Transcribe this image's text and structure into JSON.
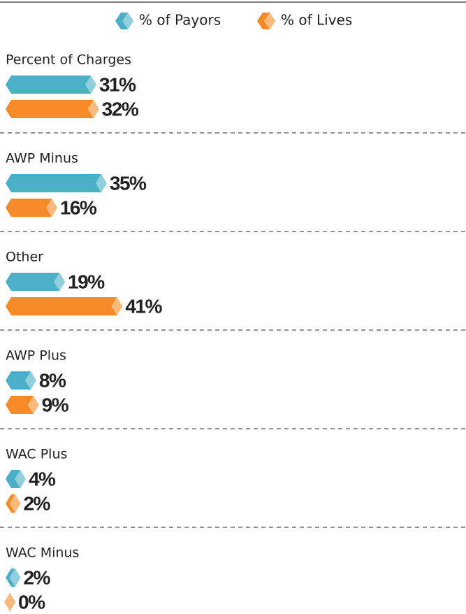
{
  "chart_data": {
    "type": "bar",
    "orientation": "horizontal",
    "legend": "top",
    "categories": [
      "Percent of Charges",
      "AWP Minus",
      "Other",
      "AWP Plus",
      "WAC Plus",
      "WAC Minus"
    ],
    "series": [
      {
        "name": "% of Payors",
        "color": "#4aafc7",
        "values": [
          31,
          35,
          19,
          8,
          4,
          2
        ],
        "value_labels": [
          "31%",
          "35%",
          "19%",
          "8%",
          "4%",
          "2%"
        ]
      },
      {
        "name": "% of Lives",
        "color": "#f68a26",
        "values": [
          32,
          16,
          41,
          9,
          2,
          0
        ],
        "value_labels": [
          "32%",
          "16%",
          "41%",
          "9%",
          "2%",
          "0%"
        ]
      }
    ]
  }
}
